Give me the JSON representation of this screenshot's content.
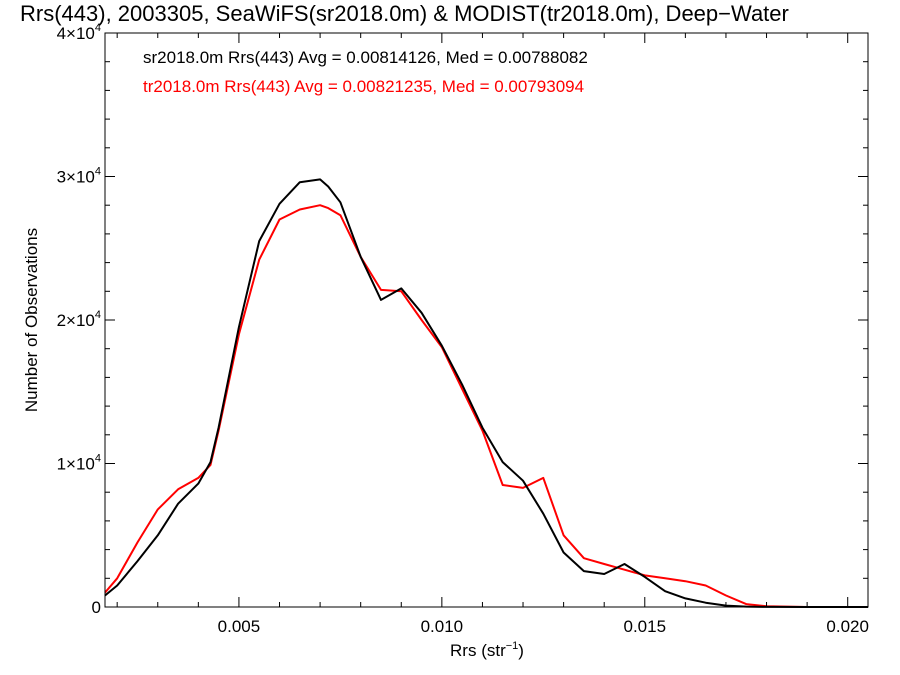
{
  "chart_data": {
    "type": "line",
    "title": "Rrs(443), 2003305, SeaWiFS(sr2018.0m) & MODIST(tr2018.0m), Deep−Water",
    "xlabel": "Rrs (str",
    "xlabel_sup": "−1",
    "xlabel_tail": ")",
    "ylabel": "Number of Observations",
    "xlim": [
      0.0017,
      0.0205
    ],
    "ylim": [
      0,
      40000
    ],
    "xticks": [
      {
        "value": 0.005,
        "label": "0.005"
      },
      {
        "value": 0.01,
        "label": "0.010"
      },
      {
        "value": 0.015,
        "label": "0.015"
      },
      {
        "value": 0.02,
        "label": "0.020"
      }
    ],
    "yticks": [
      {
        "value": 0,
        "label": "0",
        "sup": ""
      },
      {
        "value": 10000,
        "label": "1×10",
        "sup": "4"
      },
      {
        "value": 20000,
        "label": "2×10",
        "sup": "4"
      },
      {
        "value": 30000,
        "label": "3×10",
        "sup": "4"
      },
      {
        "value": 40000,
        "label": "4×10",
        "sup": "4"
      }
    ],
    "grid": false,
    "legend_position": "top-left",
    "series": [
      {
        "name": "sr2018.0m Rrs(443) Avg = 0.00814126, Med = 0.00788082",
        "color": "#000000",
        "x": [
          0.0017,
          0.002,
          0.0025,
          0.003,
          0.0035,
          0.004,
          0.0043,
          0.0045,
          0.005,
          0.0055,
          0.006,
          0.0065,
          0.007,
          0.0072,
          0.0075,
          0.008,
          0.0085,
          0.009,
          0.0095,
          0.01,
          0.0105,
          0.011,
          0.0115,
          0.012,
          0.0125,
          0.013,
          0.0135,
          0.014,
          0.0145,
          0.015,
          0.0155,
          0.016,
          0.0165,
          0.017,
          0.0175,
          0.018,
          0.019,
          0.0205
        ],
        "values": [
          800,
          1500,
          3200,
          5000,
          7200,
          8600,
          10100,
          12500,
          19500,
          25500,
          28100,
          29600,
          29800,
          29300,
          28200,
          24400,
          21400,
          22200,
          20500,
          18200,
          15500,
          12500,
          10100,
          8800,
          6500,
          3800,
          2500,
          2300,
          3000,
          2100,
          1100,
          600,
          300,
          100,
          30,
          10,
          0,
          0
        ]
      },
      {
        "name": "tr2018.0m Rrs(443) Avg = 0.00821235, Med = 0.00793094",
        "color": "#ff0000",
        "x": [
          0.0017,
          0.002,
          0.0025,
          0.003,
          0.0035,
          0.004,
          0.0043,
          0.0045,
          0.005,
          0.0055,
          0.006,
          0.0065,
          0.007,
          0.0072,
          0.0075,
          0.008,
          0.0085,
          0.009,
          0.0095,
          0.01,
          0.0105,
          0.011,
          0.0115,
          0.012,
          0.0125,
          0.013,
          0.0135,
          0.014,
          0.0145,
          0.015,
          0.0155,
          0.016,
          0.0165,
          0.017,
          0.0175,
          0.018,
          0.019,
          0.0205
        ],
        "values": [
          1000,
          2000,
          4500,
          6800,
          8200,
          9000,
          9900,
          12300,
          19000,
          24200,
          27000,
          27700,
          28000,
          27800,
          27300,
          24400,
          22100,
          22000,
          20000,
          18100,
          15200,
          12300,
          8500,
          8300,
          9000,
          5000,
          3400,
          3000,
          2600,
          2200,
          2000,
          1800,
          1500,
          800,
          200,
          50,
          0,
          0
        ]
      }
    ]
  }
}
